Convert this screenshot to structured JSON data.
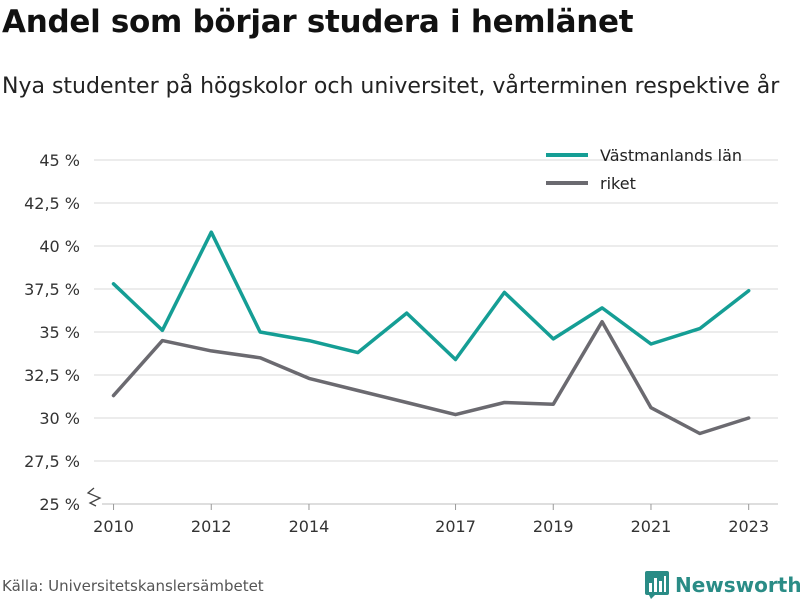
{
  "title": "Andel som börjar studera i hemlänet",
  "subtitle": "Nya studenter på högskolor och universitet, vårterminen respektive år",
  "source": "Källa: Universitetskanslersämbetet",
  "brand": "Newsworthy",
  "colors": {
    "vastmanland": "#159e95",
    "riket": "#6b6a70",
    "brand": "#2a8c86",
    "grid": "#d9d9d9"
  },
  "chart_data": {
    "type": "line",
    "x": [
      2010,
      2011,
      2012,
      2013,
      2014,
      2015,
      2016,
      2017,
      2018,
      2019,
      2020,
      2021,
      2022,
      2023
    ],
    "x_tick_labels": [
      "2010",
      "2012",
      "2014",
      "2017",
      "2019",
      "2021",
      "2023"
    ],
    "y_tick_labels": [
      "25 %",
      "27,5 %",
      "30 %",
      "32,5 %",
      "35 %",
      "37,5 %",
      "40 %",
      "42,5 %",
      "45 %"
    ],
    "ylim": [
      25,
      45
    ],
    "grid": true,
    "legend_position": "top-right",
    "series": [
      {
        "name": "Västmanlands län",
        "values": [
          37.8,
          35.1,
          40.8,
          35.0,
          34.5,
          33.8,
          36.1,
          33.4,
          37.3,
          34.6,
          36.4,
          34.3,
          35.2,
          37.4
        ]
      },
      {
        "name": "riket",
        "values": [
          31.3,
          34.5,
          33.9,
          33.5,
          32.3,
          31.6,
          30.9,
          30.2,
          30.9,
          30.8,
          35.6,
          30.6,
          29.1,
          30.0
        ]
      }
    ]
  }
}
